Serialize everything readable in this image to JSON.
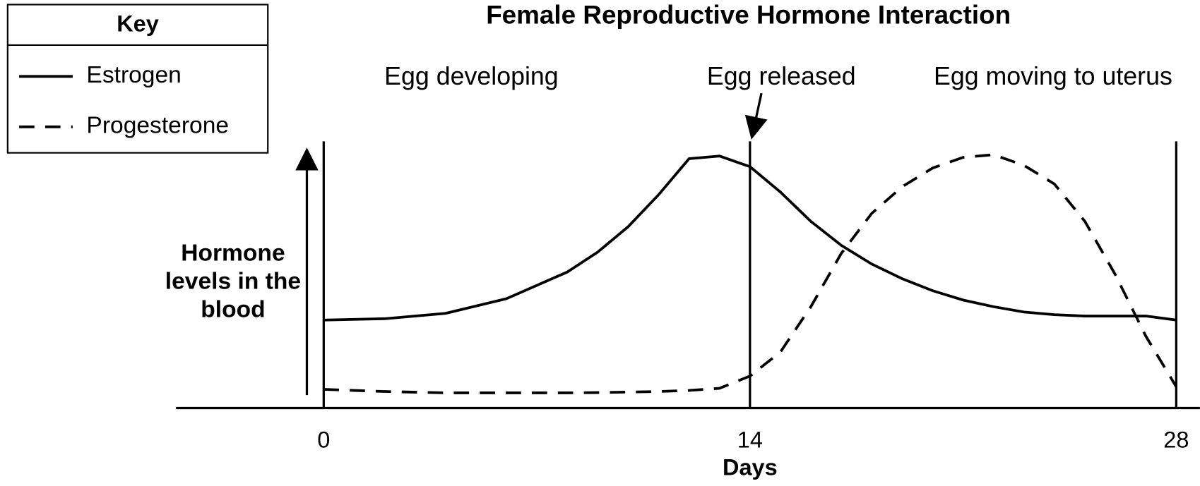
{
  "chart_data": {
    "type": "line",
    "title": "Female Reproductive Hormone Interaction",
    "xlabel": "Days",
    "ylabel": "Hormone levels in the blood",
    "legend_title": "Key",
    "annotations": [
      "Egg developing",
      "Egg released",
      "Egg moving to uterus"
    ],
    "x": [
      0,
      2,
      4,
      6,
      8,
      9,
      10,
      11,
      12,
      13,
      14,
      15,
      16,
      17,
      18,
      19,
      20,
      21,
      22,
      23,
      24,
      25,
      26,
      27,
      28
    ],
    "xlim": [
      0,
      28
    ],
    "xticks": [
      0,
      14,
      28
    ],
    "ylim": [
      0,
      100
    ],
    "series": [
      {
        "name": "Estrogen",
        "color": "#000000",
        "dash": false,
        "values": [
          33,
          33.5,
          35.5,
          41,
          51,
          58.5,
          68,
          80,
          93.5,
          94.5,
          90.5,
          81,
          70,
          61,
          54,
          48.5,
          44,
          40.5,
          38,
          36,
          35,
          34.5,
          34.5,
          34.5,
          33
        ]
      },
      {
        "name": "Progesterone",
        "color": "#000000",
        "dash": true,
        "values": [
          7,
          6.2,
          5.7,
          5.7,
          5.7,
          5.8,
          6,
          6.2,
          6.6,
          7.4,
          12,
          21,
          38,
          58,
          73,
          83,
          90,
          94,
          95,
          91,
          84,
          70,
          50,
          27,
          8
        ]
      }
    ]
  }
}
